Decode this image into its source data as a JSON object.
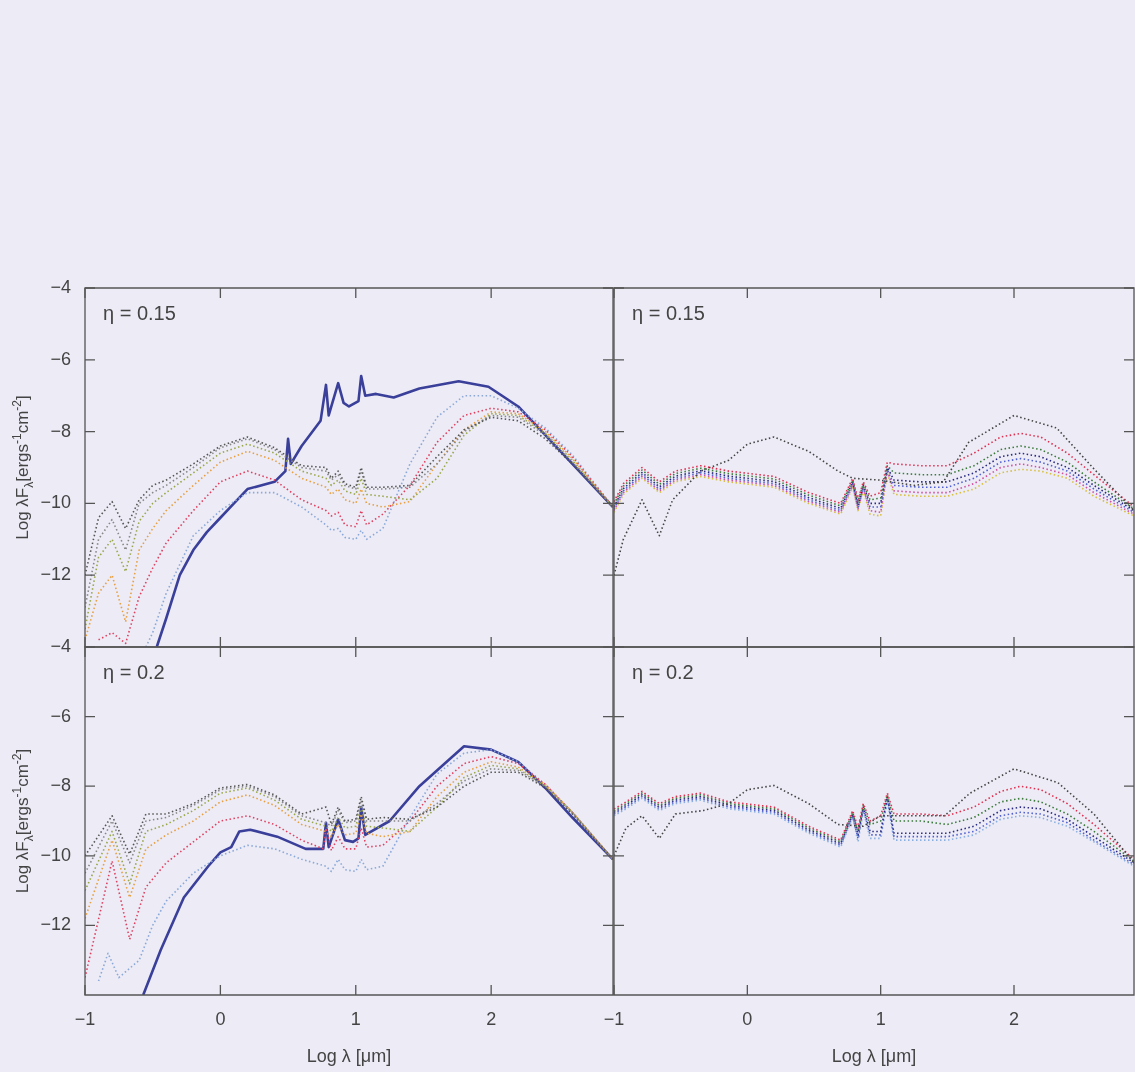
{
  "chart_data": [
    {
      "type": "line",
      "annotations": [
        "η = 0.15"
      ],
      "ylabel": "Log λF$_{λ}$[ergs$^{-1}$cm$^{-2}$]",
      "xlim": [
        -1,
        2.9
      ],
      "xticks": [
        -1,
        0,
        1,
        2
      ],
      "ylim": [
        -14,
        -4
      ],
      "yticks": [
        -12,
        -10,
        -8,
        -6,
        -4
      ],
      "tick_labels": "y",
      "grid": false,
      "legend": false,
      "marker": "none",
      "series": [
        {
          "color": "#555555",
          "line_style": "dotted",
          "x": [
            -1,
            -0.9,
            -0.8,
            -0.7,
            -0.6,
            -0.5,
            -0.4,
            -0.2,
            0,
            0.2,
            0.4,
            0.6,
            0.78,
            0.82,
            0.87,
            0.92,
            1.0,
            1.04,
            1.08,
            1.2,
            1.4,
            1.6,
            1.8,
            2.0,
            2.2,
            2.4,
            2.6,
            2.9
          ],
          "values": [
            -12.0,
            -10.4,
            -9.95,
            -10.7,
            -9.9,
            -9.5,
            -9.35,
            -8.9,
            -8.4,
            -8.15,
            -8.45,
            -8.95,
            -9.0,
            -9.3,
            -9.1,
            -9.45,
            -9.55,
            -9.0,
            -9.55,
            -9.55,
            -9.5,
            -8.7,
            -7.95,
            -7.6,
            -7.7,
            -8.2,
            -8.9,
            -10.1
          ]
        },
        {
          "color": "#888888",
          "line_style": "dotted",
          "x": [
            -1,
            -0.9,
            -0.8,
            -0.7,
            -0.6,
            -0.5,
            -0.4,
            -0.2,
            0,
            0.2,
            0.4,
            0.6,
            0.78,
            0.82,
            0.87,
            0.92,
            1.0,
            1.04,
            1.08,
            1.2,
            1.4,
            1.6,
            1.8,
            2.0,
            2.2,
            2.4,
            2.6,
            2.9
          ],
          "values": [
            -12.9,
            -11.0,
            -10.45,
            -11.3,
            -10.0,
            -9.7,
            -9.5,
            -9.0,
            -8.45,
            -8.2,
            -8.5,
            -9.0,
            -9.1,
            -9.35,
            -9.2,
            -9.5,
            -9.6,
            -9.1,
            -9.6,
            -9.6,
            -9.55,
            -8.9,
            -8.0,
            -7.55,
            -7.6,
            -8.1,
            -8.85,
            -10.1
          ]
        },
        {
          "color": "#9aa84a",
          "line_style": "dotted",
          "x": [
            -1,
            -0.9,
            -0.8,
            -0.7,
            -0.6,
            -0.5,
            -0.4,
            -0.2,
            0,
            0.2,
            0.4,
            0.6,
            0.78,
            0.82,
            0.87,
            0.92,
            1.0,
            1.04,
            1.08,
            1.2,
            1.4,
            1.6,
            1.8,
            2.0,
            2.2,
            2.4,
            2.6,
            2.9
          ],
          "values": [
            -13.5,
            -11.5,
            -11.0,
            -11.9,
            -10.5,
            -10.0,
            -9.7,
            -9.15,
            -8.6,
            -8.35,
            -8.6,
            -9.1,
            -9.3,
            -9.5,
            -9.35,
            -9.65,
            -9.75,
            -9.3,
            -9.75,
            -9.8,
            -9.9,
            -9.3,
            -8.1,
            -7.5,
            -7.55,
            -8.05,
            -8.8,
            -10.1
          ]
        },
        {
          "color": "#e8a040",
          "line_style": "dotted",
          "x": [
            -1,
            -0.9,
            -0.8,
            -0.7,
            -0.6,
            -0.5,
            -0.4,
            -0.2,
            0,
            0.2,
            0.4,
            0.6,
            0.78,
            0.82,
            0.87,
            0.92,
            1.0,
            1.04,
            1.08,
            1.2,
            1.4,
            1.6,
            1.8,
            2.0,
            2.2,
            2.4,
            2.6,
            2.9
          ],
          "values": [
            -13.8,
            -12.5,
            -12.0,
            -13.3,
            -11.3,
            -10.7,
            -10.2,
            -9.5,
            -8.85,
            -8.55,
            -8.8,
            -9.3,
            -9.55,
            -9.75,
            -9.6,
            -9.9,
            -10.0,
            -9.6,
            -10.0,
            -10.1,
            -9.95,
            -8.9,
            -7.95,
            -7.45,
            -7.5,
            -8.0,
            -8.75,
            -10.1
          ]
        },
        {
          "color": "#e04060",
          "line_style": "dotted",
          "x": [
            -0.9,
            -0.8,
            -0.7,
            -0.6,
            -0.5,
            -0.4,
            -0.2,
            0,
            0.2,
            0.4,
            0.6,
            0.78,
            0.82,
            0.87,
            0.92,
            1.0,
            1.04,
            1.08,
            1.2,
            1.4,
            1.6,
            1.8,
            2.0,
            2.2,
            2.4,
            2.6,
            2.9
          ],
          "values": [
            -13.8,
            -13.6,
            -13.9,
            -12.6,
            -11.8,
            -11.1,
            -10.2,
            -9.4,
            -9.1,
            -9.35,
            -9.9,
            -10.2,
            -10.35,
            -10.25,
            -10.6,
            -10.65,
            -10.2,
            -10.6,
            -10.3,
            -9.5,
            -8.3,
            -7.55,
            -7.35,
            -7.45,
            -7.95,
            -8.7,
            -10.1
          ]
        },
        {
          "color": "#8aa8d8",
          "line_style": "dotted",
          "x": [
            -0.55,
            -0.5,
            -0.4,
            -0.2,
            0,
            0.2,
            0.4,
            0.6,
            0.78,
            0.82,
            0.87,
            0.92,
            1.0,
            1.04,
            1.08,
            1.2,
            1.4,
            1.6,
            1.8,
            2.0,
            2.2,
            2.4,
            2.6,
            2.9
          ],
          "values": [
            -14.0,
            -13.6,
            -12.5,
            -10.9,
            -10.2,
            -9.7,
            -9.7,
            -10.1,
            -10.6,
            -10.75,
            -10.7,
            -10.95,
            -11.0,
            -10.75,
            -11.0,
            -10.7,
            -8.9,
            -7.6,
            -7.0,
            -7.0,
            -7.35,
            -7.9,
            -8.65,
            -10.1
          ]
        },
        {
          "color": "#3a3f9a",
          "line_style": "solid",
          "x": [
            -0.47,
            -0.4,
            -0.3,
            -0.2,
            -0.1,
            0,
            0.1,
            0.2,
            0.4,
            0.48,
            0.5,
            0.52,
            0.6,
            0.74,
            0.78,
            0.8,
            0.87,
            0.91,
            0.95,
            1.02,
            1.04,
            1.07,
            1.15,
            1.28,
            1.47,
            1.76,
            1.98,
            2.2,
            2.4,
            2.6,
            2.9
          ],
          "values": [
            -14.0,
            -13.2,
            -12.0,
            -11.3,
            -10.8,
            -10.4,
            -10.0,
            -9.6,
            -9.4,
            -9.1,
            -8.2,
            -8.9,
            -8.4,
            -7.7,
            -6.7,
            -7.55,
            -6.65,
            -7.2,
            -7.3,
            -7.15,
            -6.45,
            -7.0,
            -6.95,
            -7.05,
            -6.8,
            -6.6,
            -6.75,
            -7.3,
            -8.1,
            -8.9,
            -10.1
          ]
        }
      ]
    },
    {
      "type": "line",
      "annotations": [
        "η = 0.15"
      ],
      "xlim": [
        -1,
        2.9
      ],
      "xticks": [
        -1,
        0,
        1,
        2
      ],
      "ylim": [
        -14,
        -4
      ],
      "yticks": [
        -12,
        -10,
        -8,
        -6,
        -4
      ],
      "tick_labels": false,
      "grid": false,
      "legend": false,
      "marker": "none",
      "series": [
        {
          "color": "#444444",
          "line_style": "dotted",
          "x": [
            -1,
            -0.93,
            -0.79,
            -0.66,
            -0.56,
            -0.35,
            -0.14,
            0,
            0.2,
            0.46,
            0.68,
            0.79,
            0.99,
            1.25,
            1.47,
            1.66,
            2.0,
            2.32,
            2.59,
            2.9
          ],
          "values": [
            -12.0,
            -11.0,
            -9.9,
            -10.9,
            -9.9,
            -9.1,
            -8.8,
            -8.35,
            -8.15,
            -8.55,
            -9.1,
            -9.3,
            -9.35,
            -9.5,
            -9.4,
            -8.3,
            -7.55,
            -7.9,
            -9.0,
            -10.2
          ]
        },
        {
          "color": "#e03050",
          "line_style": "dotted",
          "x": [
            -1,
            -0.93,
            -0.79,
            -0.66,
            -0.54,
            -0.35,
            -0.14,
            0.2,
            0.46,
            0.7,
            0.79,
            0.83,
            0.87,
            0.92,
            1.0,
            1.05,
            1.1,
            1.3,
            1.5,
            1.7,
            1.9,
            2.05,
            2.2,
            2.4,
            2.6,
            2.9
          ],
          "values": [
            -9.95,
            -9.45,
            -9.0,
            -9.4,
            -9.1,
            -8.95,
            -9.1,
            -9.25,
            -9.7,
            -10.0,
            -9.3,
            -9.9,
            -9.4,
            -9.8,
            -9.7,
            -8.85,
            -8.9,
            -8.95,
            -8.95,
            -8.6,
            -8.15,
            -8.05,
            -8.15,
            -8.6,
            -9.2,
            -10.1
          ]
        },
        {
          "color": "#3a7a3a",
          "line_style": "dotted",
          "x": [
            -1,
            -0.93,
            -0.79,
            -0.66,
            -0.54,
            -0.35,
            -0.14,
            0.2,
            0.46,
            0.7,
            0.79,
            0.83,
            0.87,
            0.92,
            1.0,
            1.05,
            1.1,
            1.3,
            1.5,
            1.7,
            1.9,
            2.05,
            2.2,
            2.4,
            2.6,
            2.9
          ],
          "values": [
            -10.02,
            -9.52,
            -9.07,
            -9.47,
            -9.17,
            -9.02,
            -9.17,
            -9.32,
            -9.77,
            -10.07,
            -9.35,
            -9.95,
            -9.45,
            -9.9,
            -9.85,
            -8.95,
            -9.15,
            -9.2,
            -9.2,
            -8.95,
            -8.5,
            -8.4,
            -8.5,
            -8.85,
            -9.4,
            -10.15
          ]
        },
        {
          "color": "#2a2a80",
          "line_style": "dotted",
          "x": [
            -1,
            -0.93,
            -0.79,
            -0.66,
            -0.54,
            -0.35,
            -0.14,
            0.2,
            0.46,
            0.7,
            0.79,
            0.83,
            0.87,
            0.92,
            1.0,
            1.05,
            1.1,
            1.3,
            1.5,
            1.7,
            1.9,
            2.05,
            2.2,
            2.4,
            2.6,
            2.9
          ],
          "values": [
            -10.09,
            -9.59,
            -9.14,
            -9.54,
            -9.24,
            -9.09,
            -9.24,
            -9.39,
            -9.84,
            -10.14,
            -9.4,
            -10.05,
            -9.5,
            -10.0,
            -10.0,
            -9.0,
            -9.35,
            -9.4,
            -9.4,
            -9.15,
            -8.7,
            -8.6,
            -8.7,
            -9.0,
            -9.5,
            -10.2
          ]
        },
        {
          "color": "#5060d0",
          "line_style": "dotted",
          "x": [
            -1,
            -0.93,
            -0.79,
            -0.66,
            -0.54,
            -0.35,
            -0.14,
            0.2,
            0.46,
            0.7,
            0.79,
            0.83,
            0.87,
            0.92,
            1.0,
            1.05,
            1.1,
            1.3,
            1.5,
            1.7,
            1.9,
            2.05,
            2.2,
            2.4,
            2.6,
            2.9
          ],
          "values": [
            -10.15,
            -9.65,
            -9.2,
            -9.6,
            -9.3,
            -9.15,
            -9.3,
            -9.45,
            -9.9,
            -10.2,
            -9.45,
            -10.1,
            -9.55,
            -10.1,
            -10.1,
            -9.05,
            -9.5,
            -9.55,
            -9.55,
            -9.3,
            -8.85,
            -8.75,
            -8.85,
            -9.1,
            -9.6,
            -10.25
          ]
        },
        {
          "color": "#d050a0",
          "line_style": "dotted",
          "x": [
            -1,
            -0.93,
            -0.79,
            -0.66,
            -0.54,
            -0.35,
            -0.14,
            0.2,
            0.46,
            0.7,
            0.79,
            0.83,
            0.87,
            0.92,
            1.0,
            1.05,
            1.1,
            1.3,
            1.5,
            1.7,
            1.9,
            2.05,
            2.2,
            2.4,
            2.6,
            2.9
          ],
          "values": [
            -10.2,
            -9.7,
            -9.25,
            -9.65,
            -9.35,
            -9.2,
            -9.35,
            -9.5,
            -9.95,
            -10.25,
            -9.5,
            -10.15,
            -9.6,
            -10.2,
            -10.25,
            -9.1,
            -9.65,
            -9.7,
            -9.7,
            -9.45,
            -9.0,
            -8.9,
            -9.0,
            -9.2,
            -9.7,
            -10.3
          ]
        },
        {
          "color": "#d8c040",
          "line_style": "dotted",
          "x": [
            -1,
            -0.93,
            -0.79,
            -0.66,
            -0.54,
            -0.35,
            -0.14,
            0.2,
            0.46,
            0.7,
            0.79,
            0.83,
            0.87,
            0.92,
            1.0,
            1.05,
            1.1,
            1.3,
            1.5,
            1.7,
            1.9,
            2.05,
            2.2,
            2.4,
            2.6,
            2.9
          ],
          "values": [
            -10.25,
            -9.75,
            -9.3,
            -9.7,
            -9.4,
            -9.25,
            -9.4,
            -9.55,
            -10.0,
            -10.3,
            -9.55,
            -10.2,
            -9.65,
            -10.3,
            -10.35,
            -9.15,
            -9.75,
            -9.8,
            -9.8,
            -9.6,
            -9.15,
            -9.05,
            -9.1,
            -9.3,
            -9.8,
            -10.35
          ]
        }
      ]
    },
    {
      "type": "line",
      "annotations": [
        "η = 0.2"
      ],
      "xlabel": "Log λ [μm]",
      "ylabel": "Log λF$_{λ}$[ergs$^{-1}$cm$^{-2}$]",
      "xlim": [
        -1,
        2.9
      ],
      "xticks": [
        -1,
        0,
        1,
        2
      ],
      "ylim": [
        -14,
        -4
      ],
      "yticks": [
        -12,
        -10,
        -8,
        -6,
        -4
      ],
      "grid": false,
      "legend": false,
      "marker": "none",
      "series": [
        {
          "color": "#555555",
          "line_style": "dotted",
          "x": [
            -1,
            -0.8,
            -0.67,
            -0.55,
            -0.4,
            -0.2,
            0,
            0.2,
            0.4,
            0.6,
            0.78,
            0.82,
            0.87,
            0.92,
            1.0,
            1.04,
            1.08,
            1.2,
            1.4,
            1.6,
            1.8,
            2.0,
            2.2,
            2.4,
            2.6,
            2.9
          ],
          "values": [
            -10.0,
            -8.85,
            -9.95,
            -8.8,
            -8.8,
            -8.5,
            -8.05,
            -7.95,
            -8.25,
            -8.8,
            -8.6,
            -9.1,
            -8.6,
            -9.0,
            -8.95,
            -8.3,
            -8.95,
            -8.9,
            -8.95,
            -8.6,
            -8.0,
            -7.6,
            -7.6,
            -8.05,
            -8.8,
            -10.1
          ]
        },
        {
          "color": "#888888",
          "line_style": "dotted",
          "x": [
            -1,
            -0.8,
            -0.67,
            -0.55,
            -0.4,
            -0.2,
            0,
            0.2,
            0.4,
            0.6,
            0.78,
            0.82,
            0.87,
            0.92,
            1.0,
            1.04,
            1.08,
            1.2,
            1.4,
            1.6,
            1.8,
            2.0,
            2.2,
            2.4,
            2.6,
            2.9
          ],
          "values": [
            -10.5,
            -9.0,
            -10.2,
            -9.0,
            -8.9,
            -8.55,
            -8.1,
            -8.0,
            -8.3,
            -8.85,
            -9.05,
            -9.15,
            -8.7,
            -9.05,
            -9.0,
            -8.4,
            -9.0,
            -9.0,
            -9.0,
            -8.5,
            -7.85,
            -7.5,
            -7.55,
            -8.0,
            -8.75,
            -10.1
          ]
        },
        {
          "color": "#9aa84a",
          "line_style": "dotted",
          "x": [
            -1,
            -0.8,
            -0.67,
            -0.55,
            -0.4,
            -0.2,
            0,
            0.2,
            0.4,
            0.6,
            0.78,
            0.82,
            0.87,
            0.92,
            1.0,
            1.04,
            1.08,
            1.2,
            1.4,
            1.6,
            1.8,
            2.0,
            2.2,
            2.4,
            2.6,
            2.9
          ],
          "values": [
            -11.0,
            -9.3,
            -10.8,
            -9.3,
            -9.1,
            -8.7,
            -8.2,
            -8.05,
            -8.4,
            -8.95,
            -9.15,
            -9.3,
            -8.9,
            -9.2,
            -9.15,
            -8.6,
            -9.15,
            -9.2,
            -9.3,
            -8.6,
            -7.75,
            -7.4,
            -7.5,
            -8.0,
            -8.75,
            -10.1
          ]
        },
        {
          "color": "#e8a040",
          "line_style": "dotted",
          "x": [
            -1,
            -0.8,
            -0.67,
            -0.55,
            -0.4,
            -0.2,
            0,
            0.2,
            0.4,
            0.6,
            0.78,
            0.82,
            0.87,
            0.92,
            1.0,
            1.04,
            1.08,
            1.2,
            1.4,
            1.6,
            1.8,
            2.0,
            2.2,
            2.4,
            2.6,
            2.9
          ],
          "values": [
            -11.8,
            -9.55,
            -11.2,
            -9.8,
            -9.4,
            -9.0,
            -8.45,
            -8.25,
            -8.55,
            -9.1,
            -9.3,
            -9.45,
            -9.1,
            -9.4,
            -9.35,
            -8.8,
            -9.35,
            -9.45,
            -9.3,
            -8.3,
            -7.6,
            -7.3,
            -7.45,
            -7.95,
            -8.75,
            -10.1
          ]
        },
        {
          "color": "#e04060",
          "line_style": "dotted",
          "x": [
            -1,
            -0.8,
            -0.67,
            -0.55,
            -0.4,
            -0.2,
            0,
            0.2,
            0.4,
            0.6,
            0.76,
            0.78,
            0.82,
            0.87,
            0.92,
            1.0,
            1.04,
            1.08,
            1.2,
            1.4,
            1.6,
            1.8,
            2.0,
            2.2,
            2.4,
            2.6,
            2.9
          ],
          "values": [
            -13.5,
            -10.15,
            -12.4,
            -10.9,
            -10.2,
            -9.6,
            -9.0,
            -8.85,
            -9.1,
            -9.55,
            -9.8,
            -9.2,
            -9.85,
            -9.45,
            -9.8,
            -9.8,
            -9.2,
            -9.75,
            -9.7,
            -9.0,
            -8.0,
            -7.35,
            -7.15,
            -7.35,
            -7.95,
            -8.75,
            -10.1
          ]
        },
        {
          "color": "#8aa8d8",
          "line_style": "dotted",
          "x": [
            -0.9,
            -0.83,
            -0.75,
            -0.6,
            -0.5,
            -0.4,
            -0.2,
            0,
            0.2,
            0.4,
            0.6,
            0.78,
            0.82,
            0.87,
            0.92,
            1.0,
            1.04,
            1.08,
            1.2,
            1.4,
            1.6,
            1.8,
            2.0,
            2.2,
            2.4,
            2.6,
            2.9
          ],
          "values": [
            -13.6,
            -12.8,
            -13.5,
            -13.0,
            -12.0,
            -11.3,
            -10.5,
            -10.0,
            -9.7,
            -9.8,
            -10.1,
            -10.3,
            -10.45,
            -10.1,
            -10.4,
            -10.45,
            -10.1,
            -10.4,
            -10.3,
            -8.9,
            -7.65,
            -7.05,
            -6.95,
            -7.3,
            -7.95,
            -8.8,
            -10.1
          ]
        },
        {
          "color": "#3a3f9a",
          "line_style": "solid",
          "x": [
            -0.57,
            -0.44,
            -0.27,
            -0.09,
            0,
            0.08,
            0.14,
            0.22,
            0.42,
            0.63,
            0.76,
            0.78,
            0.8,
            0.87,
            0.92,
            0.98,
            1.02,
            1.04,
            1.07,
            1.25,
            1.47,
            1.8,
            2.0,
            2.2,
            2.4,
            2.6,
            2.9
          ],
          "values": [
            -14.0,
            -12.7,
            -11.2,
            -10.3,
            -9.9,
            -9.75,
            -9.3,
            -9.25,
            -9.45,
            -9.8,
            -9.8,
            -9.05,
            -9.75,
            -8.95,
            -9.55,
            -9.6,
            -9.5,
            -8.6,
            -9.4,
            -9.0,
            -8.0,
            -6.85,
            -6.95,
            -7.3,
            -8.05,
            -8.9,
            -10.1
          ]
        }
      ]
    },
    {
      "type": "line",
      "annotations": [
        "η = 0.2"
      ],
      "xlabel": "Log λ [μm]",
      "xlim": [
        -1,
        2.9
      ],
      "xticks": [
        -1,
        0,
        1,
        2
      ],
      "ylim": [
        -14,
        -4
      ],
      "yticks": [
        -12,
        -10,
        -8,
        -6,
        -4
      ],
      "tick_labels": "x",
      "grid": false,
      "legend": false,
      "marker": "none",
      "series": [
        {
          "color": "#444444",
          "line_style": "dotted",
          "x": [
            -1,
            -0.91,
            -0.79,
            -0.66,
            -0.54,
            -0.33,
            -0.14,
            0,
            0.2,
            0.46,
            0.68,
            0.87,
            1.0,
            1.48,
            1.67,
            2.0,
            2.33,
            2.6,
            2.9
          ],
          "values": [
            -10.0,
            -9.2,
            -8.85,
            -9.5,
            -8.8,
            -8.7,
            -8.5,
            -8.1,
            -7.98,
            -8.5,
            -9.1,
            -9.15,
            -8.85,
            -8.85,
            -8.2,
            -7.5,
            -7.9,
            -8.8,
            -10.2
          ]
        },
        {
          "color": "#e03050",
          "line_style": "dotted",
          "x": [
            -1,
            -0.93,
            -0.79,
            -0.66,
            -0.54,
            -0.35,
            -0.14,
            0.2,
            0.46,
            0.7,
            0.79,
            0.83,
            0.87,
            0.92,
            1.0,
            1.05,
            1.1,
            1.3,
            1.5,
            1.7,
            1.9,
            2.05,
            2.2,
            2.4,
            2.6,
            2.9
          ],
          "values": [
            -8.65,
            -8.5,
            -8.15,
            -8.5,
            -8.3,
            -8.2,
            -8.45,
            -8.6,
            -9.15,
            -9.55,
            -8.7,
            -9.2,
            -8.5,
            -9.0,
            -8.85,
            -8.2,
            -8.8,
            -8.8,
            -8.85,
            -8.6,
            -8.15,
            -8.0,
            -8.1,
            -8.5,
            -9.1,
            -10.1
          ]
        },
        {
          "color": "#3a7a3a",
          "line_style": "dotted",
          "x": [
            -1,
            -0.93,
            -0.79,
            -0.66,
            -0.54,
            -0.35,
            -0.14,
            0.2,
            0.46,
            0.7,
            0.79,
            0.83,
            0.87,
            0.92,
            1.0,
            1.05,
            1.1,
            1.3,
            1.5,
            1.7,
            1.9,
            2.05,
            2.2,
            2.4,
            2.6,
            2.9
          ],
          "values": [
            -8.7,
            -8.55,
            -8.2,
            -8.55,
            -8.35,
            -8.25,
            -8.5,
            -8.65,
            -9.2,
            -9.6,
            -8.75,
            -9.3,
            -8.55,
            -9.1,
            -9.0,
            -8.25,
            -9.0,
            -9.0,
            -9.1,
            -8.9,
            -8.45,
            -8.35,
            -8.45,
            -8.8,
            -9.3,
            -10.15
          ]
        },
        {
          "color": "#2a2a80",
          "line_style": "dotted",
          "x": [
            -1,
            -0.93,
            -0.79,
            -0.66,
            -0.54,
            -0.35,
            -0.14,
            0.2,
            0.46,
            0.7,
            0.79,
            0.83,
            0.87,
            0.92,
            1.0,
            1.05,
            1.1,
            1.3,
            1.5,
            1.7,
            1.9,
            2.05,
            2.2,
            2.4,
            2.6,
            2.9
          ],
          "values": [
            -8.75,
            -8.6,
            -8.25,
            -8.6,
            -8.4,
            -8.3,
            -8.55,
            -8.7,
            -9.25,
            -9.65,
            -8.8,
            -9.4,
            -8.6,
            -9.3,
            -9.3,
            -8.3,
            -9.35,
            -9.35,
            -9.35,
            -9.15,
            -8.7,
            -8.6,
            -8.65,
            -8.95,
            -9.45,
            -10.2
          ]
        },
        {
          "color": "#5060d0",
          "line_style": "dotted",
          "x": [
            -1,
            -0.93,
            -0.79,
            -0.66,
            -0.54,
            -0.35,
            -0.14,
            0.2,
            0.46,
            0.7,
            0.79,
            0.83,
            0.87,
            0.92,
            1.0,
            1.05,
            1.1,
            1.3,
            1.5,
            1.7,
            1.9,
            2.05,
            2.2,
            2.4,
            2.6,
            2.9
          ],
          "values": [
            -8.8,
            -8.65,
            -8.3,
            -8.65,
            -8.45,
            -8.35,
            -8.6,
            -8.75,
            -9.3,
            -9.7,
            -8.85,
            -9.5,
            -8.65,
            -9.4,
            -9.4,
            -8.35,
            -9.45,
            -9.45,
            -9.45,
            -9.3,
            -8.85,
            -8.75,
            -8.8,
            -9.05,
            -9.55,
            -10.25
          ]
        },
        {
          "color": "#8ab0e0",
          "line_style": "dotted",
          "x": [
            -1,
            -0.93,
            -0.79,
            -0.66,
            -0.54,
            -0.35,
            -0.14,
            0.2,
            0.46,
            0.7,
            0.79,
            0.83,
            0.87,
            0.92,
            1.0,
            1.05,
            1.1,
            1.3,
            1.5,
            1.7,
            1.9,
            2.05,
            2.2,
            2.4,
            2.6,
            2.9
          ],
          "values": [
            -8.85,
            -8.7,
            -8.35,
            -8.7,
            -8.5,
            -8.4,
            -8.65,
            -8.8,
            -9.35,
            -9.75,
            -8.9,
            -9.6,
            -8.7,
            -9.5,
            -9.5,
            -8.4,
            -9.55,
            -9.55,
            -9.55,
            -9.4,
            -8.95,
            -8.85,
            -8.9,
            -9.15,
            -9.6,
            -10.3
          ]
        }
      ]
    }
  ]
}
